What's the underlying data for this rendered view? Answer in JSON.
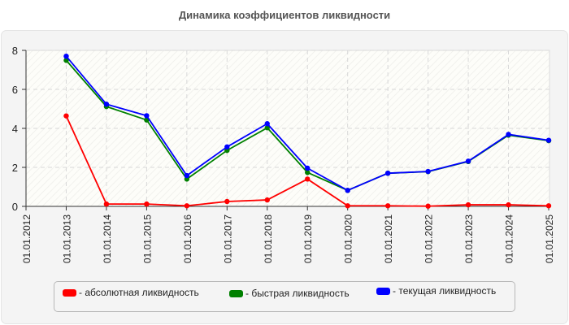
{
  "chart_data": {
    "type": "line",
    "title": "Динамика коэффициентов ликвидности",
    "xlabel": "",
    "ylabel": "",
    "categories": [
      "01.01.2012",
      "01.01.2013",
      "01.01.2014",
      "01.01.2015",
      "01.01.2016",
      "01.01.2017",
      "01.01.2018",
      "01.01.2019",
      "01.01.2020",
      "01.01.2021",
      "01.01.2022",
      "01.01.2023",
      "01.01.2024",
      "01.01.2025"
    ],
    "ylim": [
      0,
      8
    ],
    "yticks": [
      0,
      2,
      4,
      6,
      8
    ],
    "grid": true,
    "legend_position": "bottom",
    "series": [
      {
        "name": "абсолютная ликвидность",
        "color": "#ff0000",
        "values": [
          null,
          4.64,
          0.12,
          0.12,
          0.03,
          0.25,
          0.33,
          1.4,
          0.03,
          0.03,
          0.01,
          0.08,
          0.08,
          0.03
        ]
      },
      {
        "name": "быстрая ликвидность",
        "color": "#008000",
        "values": [
          null,
          7.49,
          5.12,
          4.43,
          1.4,
          2.87,
          4.03,
          1.74,
          0.82,
          1.7,
          1.78,
          2.3,
          3.65,
          3.37
        ]
      },
      {
        "name": "текущая ликвидность",
        "color": "#0000ff",
        "values": [
          null,
          7.7,
          5.24,
          4.65,
          1.58,
          3.05,
          4.24,
          1.96,
          0.82,
          1.7,
          1.79,
          2.32,
          3.69,
          3.39
        ]
      }
    ]
  },
  "legend": {
    "items": [
      {
        "label": "- абсолютная ликвидность",
        "color": "#ff0000"
      },
      {
        "label": "- быстрая ликвидность",
        "color": "#008000"
      },
      {
        "label": "- текущая ликвидность",
        "color": "#0000ff"
      }
    ]
  }
}
